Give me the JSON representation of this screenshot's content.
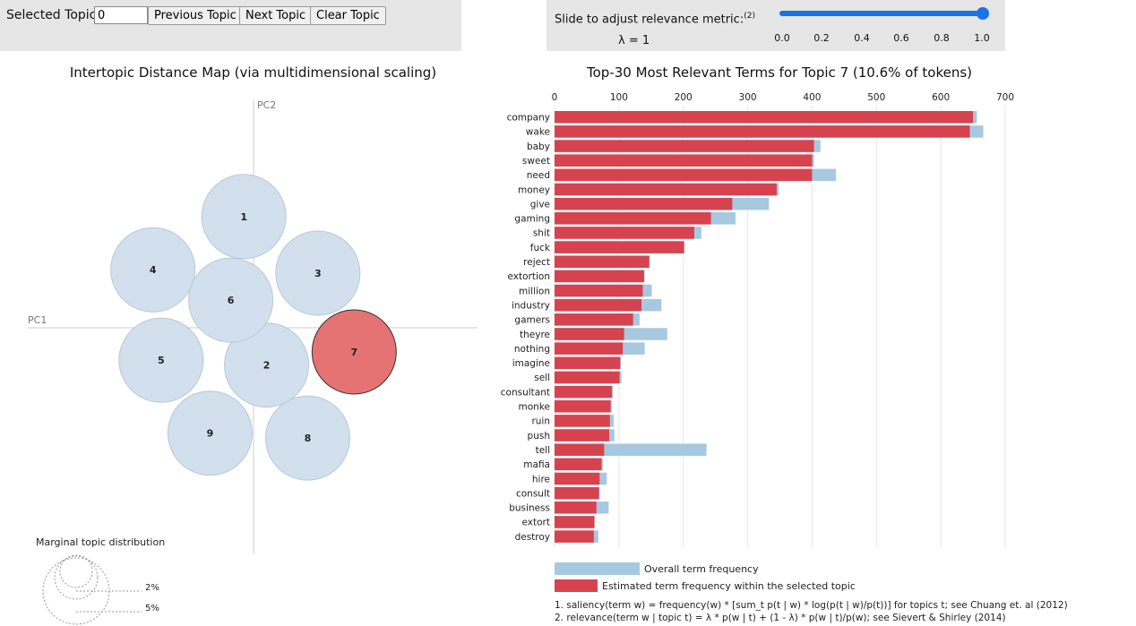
{
  "controls": {
    "selected_topic_label": "Selected Topic:",
    "selected_topic_value": "0",
    "previous_button": "Previous Topic",
    "next_button": "Next Topic",
    "clear_button": "Clear Topic"
  },
  "lambda": {
    "title": "Slide to adjust relevance metric:",
    "footnote_ref": "(2)",
    "value_text": "λ = 1",
    "value": 1.0,
    "ticks": [
      "0.0",
      "0.2",
      "0.4",
      "0.6",
      "0.8",
      "1.0"
    ],
    "accent_color": "#1a73e8"
  },
  "map": {
    "title": "Intertopic Distance Map (via multidimensional scaling)",
    "pc1_label": "PC1",
    "pc2_label": "PC2",
    "topics": [
      {
        "id": "1",
        "x": -0.2,
        "y": 2.3
      },
      {
        "id": "2",
        "x": 0.27,
        "y": -0.77
      },
      {
        "id": "3",
        "x": 1.33,
        "y": 1.13
      },
      {
        "id": "4",
        "x": -2.08,
        "y": 1.2
      },
      {
        "id": "5",
        "x": -1.91,
        "y": -0.67
      },
      {
        "id": "6",
        "x": -0.47,
        "y": 0.57
      },
      {
        "id": "7",
        "x": 2.08,
        "y": -0.5
      },
      {
        "id": "8",
        "x": 1.12,
        "y": -2.28
      },
      {
        "id": "9",
        "x": -0.9,
        "y": -2.18
      }
    ],
    "selected_topic": "7",
    "selected_color": "#e57373",
    "default_color": "#d1e0ec",
    "marginal_title": "Marginal topic distribution",
    "marginal_labels": [
      "2%",
      "5%"
    ]
  },
  "bars": {
    "title": "Top-30 Most Relevant Terms for Topic 7 (10.6% of tokens)",
    "x_ticks": [
      0,
      100,
      200,
      300,
      400,
      500,
      600,
      700
    ],
    "xlim": [
      0,
      700
    ],
    "overall_color": "#a6c8e0",
    "topic_color": "#d6434f",
    "legend_overall": "Overall term frequency",
    "legend_topic": "Estimated term frequency within the selected topic",
    "footnote1": "1. saliency(term w) = frequency(w) * [sum_t p(t | w) * log(p(t | w)/p(t))] for topics t; see Chuang et. al (2012)",
    "footnote2": "2. relevance(term w | topic t) = λ * p(w | t) + (1 - λ) * p(w | t)/p(w); see Sievert & Shirley (2014)"
  },
  "chart_data": {
    "type": "bar",
    "orientation": "horizontal",
    "title": "Top-30 Most Relevant Terms for Topic 7 (10.6% of tokens)",
    "categories": [
      "company",
      "wake",
      "baby",
      "sweet",
      "need",
      "money",
      "give",
      "gaming",
      "shit",
      "fuck",
      "reject",
      "extortion",
      "million",
      "industry",
      "gamers",
      "theyre",
      "nothing",
      "imagine",
      "sell",
      "consultant",
      "monke",
      "ruin",
      "push",
      "tell",
      "mafia",
      "hire",
      "consult",
      "business",
      "extort",
      "destroy"
    ],
    "series": [
      {
        "name": "Overall term frequency",
        "values": [
          656,
          666,
          413,
          403,
          437,
          348,
          333,
          281,
          228,
          202,
          148,
          140,
          151,
          166,
          132,
          175,
          140,
          103,
          104,
          91,
          89,
          92,
          93,
          236,
          75,
          81,
          70,
          84,
          62,
          68
        ]
      },
      {
        "name": "Estimated term frequency within the selected topic",
        "values": [
          650,
          645,
          403,
          400,
          400,
          345,
          276,
          243,
          217,
          201,
          147,
          139,
          137,
          135,
          122,
          108,
          106,
          102,
          101,
          89,
          87,
          86,
          85,
          77,
          73,
          70,
          69,
          65,
          62,
          61
        ]
      }
    ],
    "xlim": [
      0,
      700
    ]
  }
}
